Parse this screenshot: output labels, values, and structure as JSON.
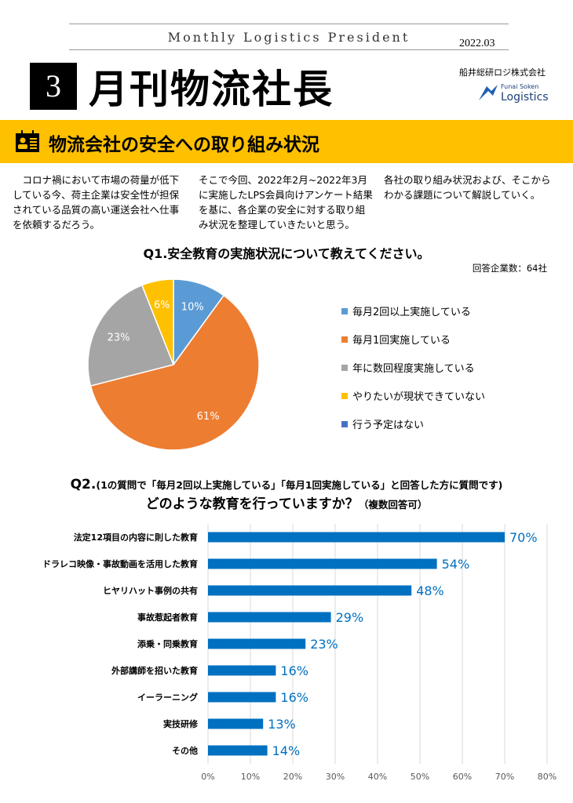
{
  "header": {
    "magazine": "Monthly Logistics President",
    "date": "2022.03",
    "issue_number": "3",
    "title": "月刊物流社長",
    "company": "船井総研ロジ株式会社",
    "logo_text": [
      "Funai Soken",
      "Logistics"
    ]
  },
  "section": {
    "title": "物流会社の安全への取り組み状況",
    "icon": "id-card-icon",
    "band_color": "#FFC000"
  },
  "intro": [
    "　コロナ禍において市場の荷量が低下している今、荷主企業は安全性が担保されている品質の高い運送会社へ仕事を依頼するだろう。",
    "そこで今回、2022年2月~2022年3月に実施したLPS会員向けアンケート結果を基に、各企業の安全に対する取り組み状況を整理していきたいと思う。",
    "各社の取り組み状況および、そこからわかる課題について解説していく。"
  ],
  "q1": {
    "title": "Q1.安全教育の実施状況について教えてください。",
    "respondents": "回答企業数：64社"
  },
  "q2": {
    "prefix": "Q2.",
    "note": "(1の質問で「毎月2回以上実施している」「毎月1回実施している」と回答した方に質問です)",
    "question": "どのような教育を行っていますか？",
    "suffix": "（複数回答可）"
  },
  "chart_data": [
    {
      "type": "pie",
      "title": "Q1.安全教育の実施状況について教えてください。",
      "legend_position": "right",
      "labels": [
        "毎月2回以上実施している",
        "毎月1回実施している",
        "年に数回程度実施している",
        "やりたいが現状できていない",
        "行う予定はない"
      ],
      "values": [
        10,
        61,
        23,
        6,
        0
      ],
      "data_labels": [
        "10%",
        "61%",
        "23%",
        "6%",
        ""
      ],
      "colors": [
        "#5B9BD5",
        "#ED7D31",
        "#A5A5A5",
        "#FFC000",
        "#4472C4"
      ]
    },
    {
      "type": "bar",
      "orientation": "horizontal",
      "categories": [
        "法定12項目の内容に則した教育",
        "ドラレコ映像・事故動画を活用した教育",
        "ヒヤリハット事例の共有",
        "事故惹起者教育",
        "添乗・同乗教育",
        "外部講師を招いた教育",
        "イーラーニング",
        "実技研修",
        "その他"
      ],
      "values": [
        70,
        54,
        48,
        29,
        23,
        16,
        16,
        13,
        14
      ],
      "data_labels": [
        "70%",
        "54%",
        "48%",
        "29%",
        "23%",
        "16%",
        "16%",
        "13%",
        "14%"
      ],
      "xlim": [
        0,
        80
      ],
      "xticks": [
        "0%",
        "10%",
        "20%",
        "30%",
        "40%",
        "50%",
        "60%",
        "70%",
        "80%"
      ],
      "grid": true,
      "bar_color": "#0070C0",
      "label_color": "#0070C0"
    }
  ]
}
